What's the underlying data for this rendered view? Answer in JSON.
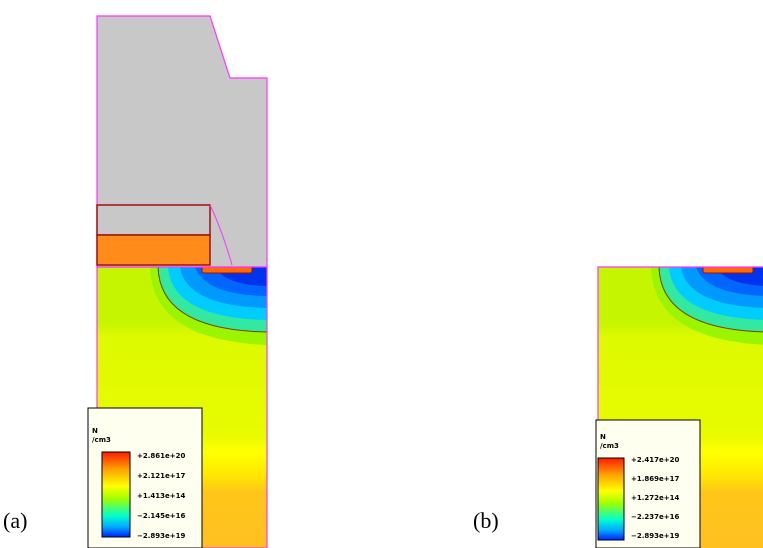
{
  "panels": [
    {
      "label": "(a)",
      "legend": {
        "title": "N",
        "unit": "/cm3",
        "ticks": [
          "+2.861e+20",
          "+2.121e+17",
          "+1.413e+14",
          "−2.145e+16",
          "−2.893e+19"
        ]
      }
    },
    {
      "label": "(b)",
      "legend": {
        "title": "N",
        "unit": "/cm3",
        "ticks": [
          "+2.417e+20",
          "+1.869e+17",
          "+1.272e+14",
          "−2.237e+16",
          "−2.893e+19"
        ]
      }
    }
  ]
}
